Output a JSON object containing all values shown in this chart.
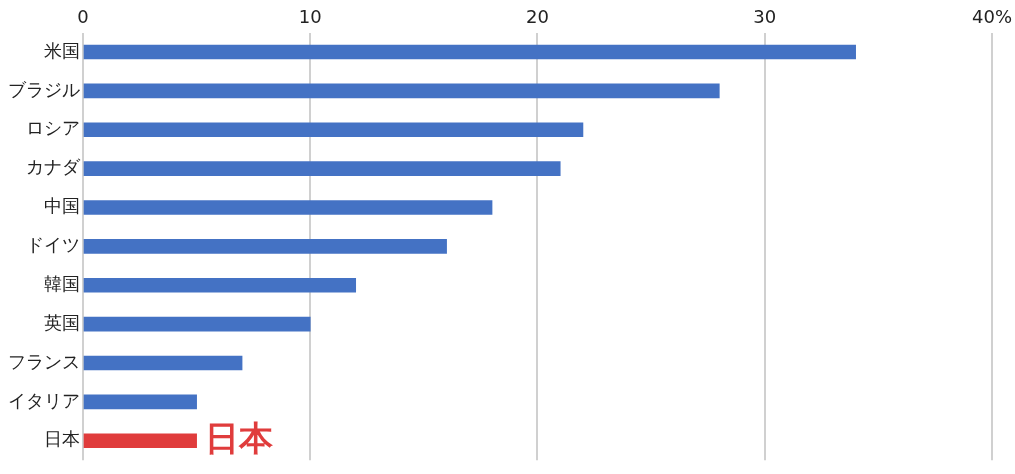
{
  "chart_data": {
    "type": "bar",
    "orientation": "horizontal",
    "categories": [
      "米国",
      "ブラジル",
      "ロシア",
      "カナダ",
      "中国",
      "ドイツ",
      "韓国",
      "英国",
      "フランス",
      "イタリア",
      "日本"
    ],
    "values": [
      34,
      28,
      22,
      21,
      18,
      16,
      12,
      10,
      7,
      5,
      5
    ],
    "colors": [
      "#4472c4",
      "#4472c4",
      "#4472c4",
      "#4472c4",
      "#4472c4",
      "#4472c4",
      "#4472c4",
      "#4472c4",
      "#4472c4",
      "#4472c4",
      "#e03c3c"
    ],
    "xlim": [
      0,
      40
    ],
    "xticks": [
      0,
      10,
      20,
      30,
      {
        "value": 40,
        "label": "40%"
      }
    ],
    "grid": "x",
    "legend": false,
    "annotations": [
      {
        "text": "日本",
        "x": 5,
        "y": "日本"
      }
    ]
  }
}
